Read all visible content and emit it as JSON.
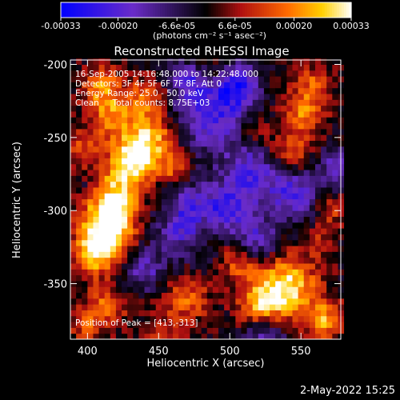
{
  "chart_data": {
    "type": "heatmap",
    "title": "Reconstructed RHESSI Image",
    "xlabel": "Heliocentric X (arcsec)",
    "ylabel": "Heliocentric Y (arcsec)",
    "xlim": [
      388,
      578
    ],
    "ylim": [
      -388,
      -197
    ],
    "x_ticks": [
      400,
      450,
      500,
      550
    ],
    "y_ticks": [
      -200,
      -250,
      -300,
      -350
    ],
    "colorbar": {
      "range": [
        -0.00033,
        0.00033
      ],
      "tick_values": [
        -0.00033,
        -0.0002,
        -6.6e-05,
        6.6e-05,
        0.0002,
        0.00033
      ],
      "tick_labels": [
        "-0.00033",
        "-0.00020",
        "-6.6e-05",
        "6.6e-05",
        "0.00020",
        "0.00033"
      ],
      "unit_label": "(photons cm⁻² s⁻¹ asec⁻²)",
      "colors": [
        "#0000ff",
        "#6a2cc8",
        "#000000",
        "#b01010",
        "#ff6a00",
        "#ffd000",
        "#ffffff"
      ]
    },
    "annotations": [
      "16-Sep-2005 14:16:48.000 to 14:22:48.000",
      "Detectors: 3F 4F 5F 6F 7F 8F, Att 0",
      "Energy Range: 25.0 - 50.0 keV",
      "Clean     Total counts: 8.75E+03"
    ],
    "peak_label": "Position of Peak = [413,-313]",
    "peak": [
      413,
      -313
    ],
    "features": [
      {
        "x": 413,
        "y": -313,
        "v": 0.00033,
        "r": 13
      },
      {
        "x": 420,
        "y": -290,
        "v": 0.00024,
        "r": 14
      },
      {
        "x": 405,
        "y": -330,
        "v": 0.00022,
        "r": 10
      },
      {
        "x": 432,
        "y": -265,
        "v": 0.00026,
        "r": 12
      },
      {
        "x": 445,
        "y": -250,
        "v": 0.00022,
        "r": 13
      },
      {
        "x": 418,
        "y": -235,
        "v": 0.00018,
        "r": 11
      },
      {
        "x": 410,
        "y": -215,
        "v": 0.00019,
        "r": 10
      },
      {
        "x": 440,
        "y": -222,
        "v": 0.00016,
        "r": 9
      },
      {
        "x": 395,
        "y": -255,
        "v": 0.00012,
        "r": 9
      },
      {
        "x": 460,
        "y": -272,
        "v": 0.00014,
        "r": 8
      },
      {
        "x": 540,
        "y": -352,
        "v": 0.0003,
        "r": 15
      },
      {
        "x": 522,
        "y": -365,
        "v": 0.00021,
        "r": 11
      },
      {
        "x": 566,
        "y": -375,
        "v": 0.00022,
        "r": 9
      },
      {
        "x": 506,
        "y": -335,
        "v": 0.00015,
        "r": 9
      },
      {
        "x": 552,
        "y": -232,
        "v": 0.0002,
        "r": 10
      },
      {
        "x": 542,
        "y": -258,
        "v": 0.00016,
        "r": 10
      },
      {
        "x": 560,
        "y": -212,
        "v": 0.00014,
        "r": 9
      },
      {
        "x": 518,
        "y": -245,
        "v": 0.0001,
        "r": 7
      },
      {
        "x": 470,
        "y": -360,
        "v": 0.00017,
        "r": 11
      },
      {
        "x": 452,
        "y": -385,
        "v": 0.00012,
        "r": 10
      },
      {
        "x": 412,
        "y": -365,
        "v": 0.00016,
        "r": 11
      },
      {
        "x": 398,
        "y": -380,
        "v": 0.00011,
        "r": 8
      },
      {
        "x": 485,
        "y": -312,
        "v": 0.00011,
        "r": 8
      },
      {
        "x": 570,
        "y": -300,
        "v": 0.00012,
        "r": 8
      },
      {
        "x": 562,
        "y": -322,
        "v": 0.0001,
        "r": 7
      },
      {
        "x": 455,
        "y": -300,
        "v": 8e-05,
        "r": 6
      },
      {
        "x": 490,
        "y": -205,
        "v": 9e-05,
        "r": 7
      },
      {
        "x": 485,
        "y": -235,
        "v": -0.00022,
        "r": 16
      },
      {
        "x": 470,
        "y": -305,
        "v": -0.00024,
        "r": 16
      },
      {
        "x": 515,
        "y": -275,
        "v": -0.0002,
        "r": 15
      },
      {
        "x": 505,
        "y": -215,
        "v": -0.00026,
        "r": 11
      },
      {
        "x": 545,
        "y": -290,
        "v": -0.0002,
        "r": 12
      },
      {
        "x": 498,
        "y": -300,
        "v": -0.00018,
        "r": 11
      },
      {
        "x": 525,
        "y": -385,
        "v": -0.0002,
        "r": 10
      },
      {
        "x": 575,
        "y": -270,
        "v": -0.00016,
        "r": 9
      },
      {
        "x": 440,
        "y": -340,
        "v": -0.00016,
        "r": 10
      },
      {
        "x": 520,
        "y": -320,
        "v": -0.00018,
        "r": 10
      },
      {
        "x": 400,
        "y": -285,
        "v": -8e-05,
        "r": 6
      },
      {
        "x": 472,
        "y": -212,
        "v": -0.00016,
        "r": 9
      }
    ]
  },
  "footer": {
    "date": "2-May-2022 15:25"
  }
}
